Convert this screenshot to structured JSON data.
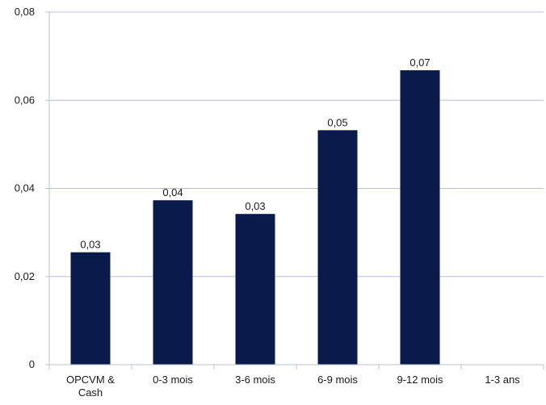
{
  "chart_data": {
    "type": "bar",
    "categories": [
      "OPCVM & Cash",
      "0-3 mois",
      "3-6 mois",
      "6-9 mois",
      "9-12 mois",
      "1-3 ans"
    ],
    "category_lines": [
      [
        "OPCVM &",
        "Cash"
      ],
      [
        "0-3 mois"
      ],
      [
        "3-6 mois"
      ],
      [
        "6-9 mois"
      ],
      [
        "9-12 mois"
      ],
      [
        "1-3 ans"
      ]
    ],
    "values": [
      0.0255,
      0.0373,
      0.0342,
      0.0532,
      0.0668,
      null
    ],
    "data_labels": [
      "0,03",
      "0,04",
      "0,03",
      "0,05",
      "0,07",
      ""
    ],
    "y_ticks": [
      0,
      0.02,
      0.04,
      0.06,
      0.08
    ],
    "y_tick_labels": [
      "0",
      "0,02",
      "0,04",
      "0,06",
      "0,08"
    ],
    "ylim": [
      0,
      0.08
    ],
    "title": "",
    "xlabel": "",
    "ylabel": "",
    "grid": true,
    "legend": "none",
    "colors": {
      "bar": "#0a1a4a",
      "grid": "#b4c0d8",
      "axis": "#b4c0d8",
      "text": "#1a1a1a"
    }
  }
}
